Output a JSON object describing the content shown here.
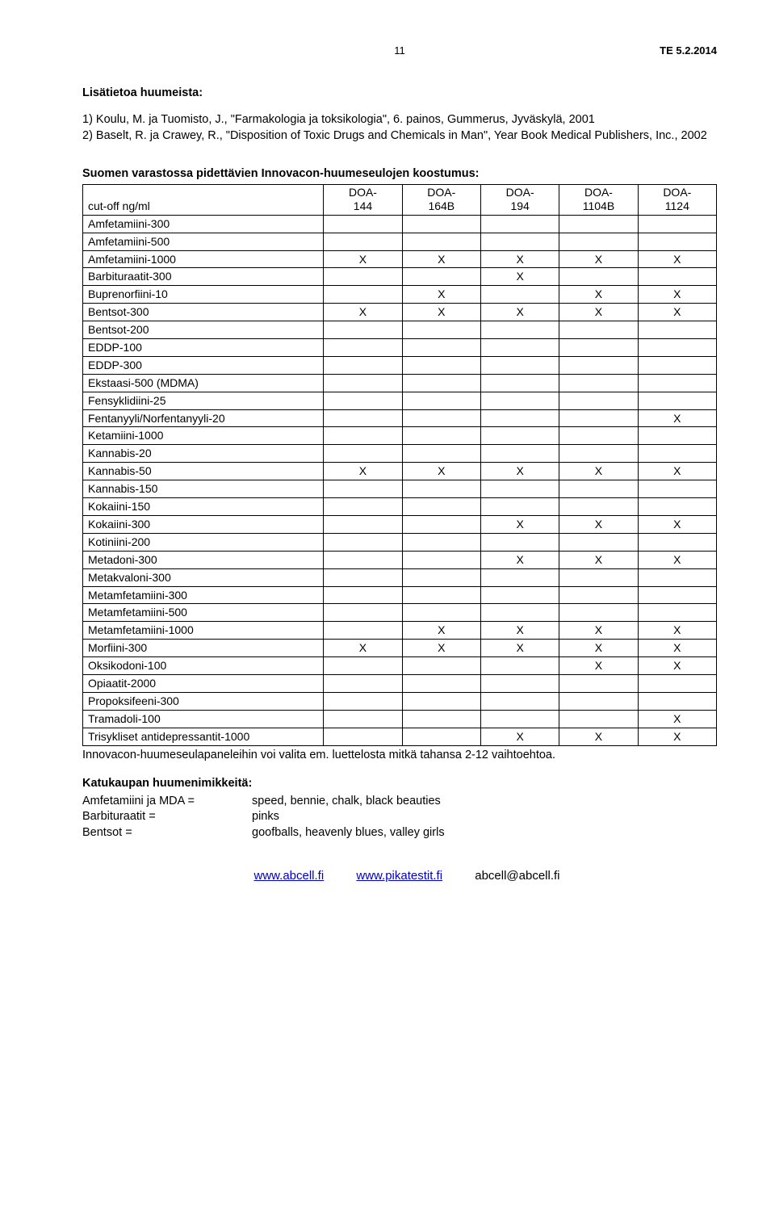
{
  "header": {
    "page_no": "11",
    "doc_ref": "TE 5.2.2014"
  },
  "intro_heading": "Lisätietoa huumeista:",
  "biblio": [
    "1)   Koulu, M. ja Tuomisto, J., \"Farmakologia ja toksikologia\", 6. painos, Gummerus, Jyväskylä, 2001",
    "2)   Baselt, R. ja Crawey, R., \"Disposition of Toxic Drugs and Chemicals in Man\", Year Book Medical Publishers, Inc., 2002"
  ],
  "table": {
    "title": "Suomen varastossa pidettävien Innovacon-huumeseulojen koostumus:",
    "first_col_header": "cut-off ng/ml",
    "columns": [
      {
        "line1": "DOA-",
        "line2": "144"
      },
      {
        "line1": "DOA-",
        "line2": "164B"
      },
      {
        "line1": "DOA-",
        "line2": "194"
      },
      {
        "line1": "DOA-",
        "line2": "1104B"
      },
      {
        "line1": "DOA-",
        "line2": "1124"
      }
    ],
    "rows": [
      {
        "label": "Amfetamiini-300",
        "marks": [
          "",
          "",
          "",
          "",
          ""
        ]
      },
      {
        "label": "Amfetamiini-500",
        "marks": [
          "",
          "",
          "",
          "",
          ""
        ]
      },
      {
        "label": "Amfetamiini-1000",
        "marks": [
          "X",
          "X",
          "X",
          "X",
          "X"
        ]
      },
      {
        "label": "Barbituraatit-300",
        "marks": [
          "",
          "",
          "X",
          "",
          ""
        ]
      },
      {
        "label": "Buprenorfiini-10",
        "marks": [
          "",
          "X",
          "",
          "X",
          "X"
        ]
      },
      {
        "label": "Bentsot-300",
        "marks": [
          "X",
          "X",
          "X",
          "X",
          "X"
        ]
      },
      {
        "label": "Bentsot-200",
        "marks": [
          "",
          "",
          "",
          "",
          ""
        ]
      },
      {
        "label": "EDDP-100",
        "marks": [
          "",
          "",
          "",
          "",
          ""
        ]
      },
      {
        "label": "EDDP-300",
        "marks": [
          "",
          "",
          "",
          "",
          ""
        ]
      },
      {
        "label": "Ekstaasi-500 (MDMA)",
        "marks": [
          "",
          "",
          "",
          "",
          ""
        ]
      },
      {
        "label": "Fensyklidiini-25",
        "marks": [
          "",
          "",
          "",
          "",
          ""
        ]
      },
      {
        "label": "Fentanyyli/Norfentanyyli-20",
        "marks": [
          "",
          "",
          "",
          "",
          "X"
        ]
      },
      {
        "label": "Ketamiini-1000",
        "marks": [
          "",
          "",
          "",
          "",
          ""
        ]
      },
      {
        "label": "Kannabis-20",
        "marks": [
          "",
          "",
          "",
          "",
          ""
        ]
      },
      {
        "label": "Kannabis-50",
        "marks": [
          "X",
          "X",
          "X",
          "X",
          "X"
        ]
      },
      {
        "label": "Kannabis-150",
        "marks": [
          "",
          "",
          "",
          "",
          ""
        ]
      },
      {
        "label": "Kokaiini-150",
        "marks": [
          "",
          "",
          "",
          "",
          ""
        ]
      },
      {
        "label": "Kokaiini-300",
        "marks": [
          "",
          "",
          "X",
          "X",
          "X"
        ]
      },
      {
        "label": "Kotiniini-200",
        "marks": [
          "",
          "",
          "",
          "",
          ""
        ]
      },
      {
        "label": "Metadoni-300",
        "marks": [
          "",
          "",
          "X",
          "X",
          "X"
        ]
      },
      {
        "label": "Metakvaloni-300",
        "marks": [
          "",
          "",
          "",
          "",
          ""
        ]
      },
      {
        "label": "Metamfetamiini-300",
        "marks": [
          "",
          "",
          "",
          "",
          ""
        ]
      },
      {
        "label": "Metamfetamiini-500",
        "marks": [
          "",
          "",
          "",
          "",
          ""
        ]
      },
      {
        "label": "Metamfetamiini-1000",
        "marks": [
          "",
          "X",
          "X",
          "X",
          "X"
        ]
      },
      {
        "label": "Morfiini-300",
        "marks": [
          "X",
          "X",
          "X",
          "X",
          "X"
        ]
      },
      {
        "label": "Oksikodoni-100",
        "marks": [
          "",
          "",
          "",
          "X",
          "X"
        ]
      },
      {
        "label": "Opiaatit-2000",
        "marks": [
          "",
          "",
          "",
          "",
          ""
        ]
      },
      {
        "label": "Propoksifeeni-300",
        "marks": [
          "",
          "",
          "",
          "",
          ""
        ]
      },
      {
        "label": "Tramadoli-100",
        "marks": [
          "",
          "",
          "",
          "",
          "X"
        ]
      },
      {
        "label": "Trisykliset antidepressantit-1000",
        "marks": [
          "",
          "",
          "X",
          "X",
          "X"
        ]
      }
    ],
    "footnote": "Innovacon-huumeseulapaneleihin voi valita em. luettelosta mitkä tahansa 2-12 vaihtoehtoa."
  },
  "nicknames": {
    "heading": "Katukaupan huumenimikkeitä:",
    "items": [
      {
        "k": "Amfetamiini ja MDA =",
        "v": "speed, bennie, chalk, black beauties"
      },
      {
        "k": "Barbituraatit =",
        "v": "pinks"
      },
      {
        "k": "Bentsot =",
        "v": "goofballs, heavenly blues, valley girls"
      }
    ]
  },
  "footer": {
    "link1": "www.abcell.fi",
    "link2": "www.pikatestit.fi",
    "email": "abcell@abcell.fi"
  }
}
